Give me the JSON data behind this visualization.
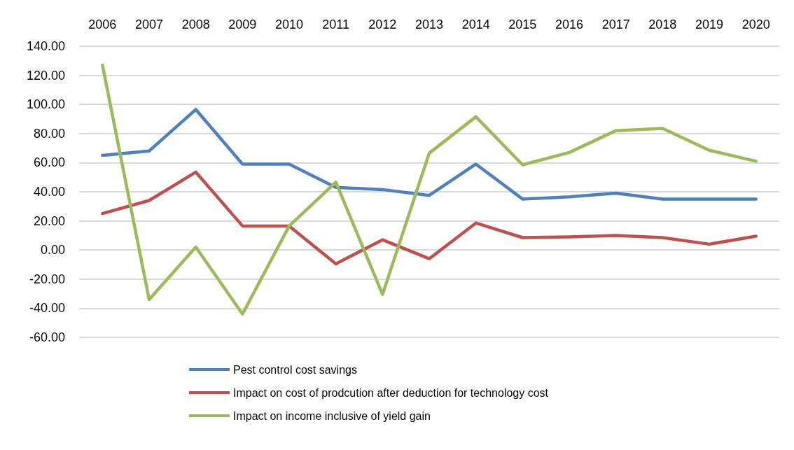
{
  "chart_data": {
    "type": "line",
    "categories": [
      "2006",
      "2007",
      "2008",
      "2009",
      "2010",
      "2011",
      "2012",
      "2013",
      "2014",
      "2015",
      "2016",
      "2017",
      "2018",
      "2019",
      "2020"
    ],
    "series": [
      {
        "name": "Pest control cost savings",
        "color": "#4f81bd",
        "values": [
          65,
          68,
          96.5,
          59,
          59,
          43,
          41.5,
          37.5,
          59,
          35,
          36.5,
          39,
          35,
          35,
          35
        ]
      },
      {
        "name": "Impact on cost of prodcution after deduction for technology cost",
        "color": "#c0504d",
        "values": [
          25,
          34,
          53.5,
          16.5,
          16.5,
          -9.5,
          7,
          -6,
          18.5,
          8.5,
          9,
          10,
          8.5,
          4,
          9.5
        ]
      },
      {
        "name": "Impact on income inclusive of yield gain",
        "color": "#9bbb59",
        "values": [
          127,
          -34,
          2,
          -44,
          16.5,
          46.5,
          -30.5,
          66.5,
          91.5,
          58.5,
          67,
          82,
          83.5,
          68.5,
          61
        ]
      }
    ],
    "ylim": [
      -60,
      140
    ],
    "yticks": [
      {
        "value": -60,
        "label": "-60.00"
      },
      {
        "value": -40,
        "label": "-40.00"
      },
      {
        "value": -20,
        "label": "-20.00"
      },
      {
        "value": 0,
        "label": "0.00"
      },
      {
        "value": 20,
        "label": "20.00"
      },
      {
        "value": 40,
        "label": "40.00"
      },
      {
        "value": 60,
        "label": "60.00"
      },
      {
        "value": 80,
        "label": "80.00"
      },
      {
        "value": 100,
        "label": "100.00"
      },
      {
        "value": 120,
        "label": "120.00"
      },
      {
        "value": 140,
        "label": "140.00"
      }
    ],
    "grid": "y",
    "legend": "bottom",
    "marker": "none",
    "line_style": "solid"
  }
}
